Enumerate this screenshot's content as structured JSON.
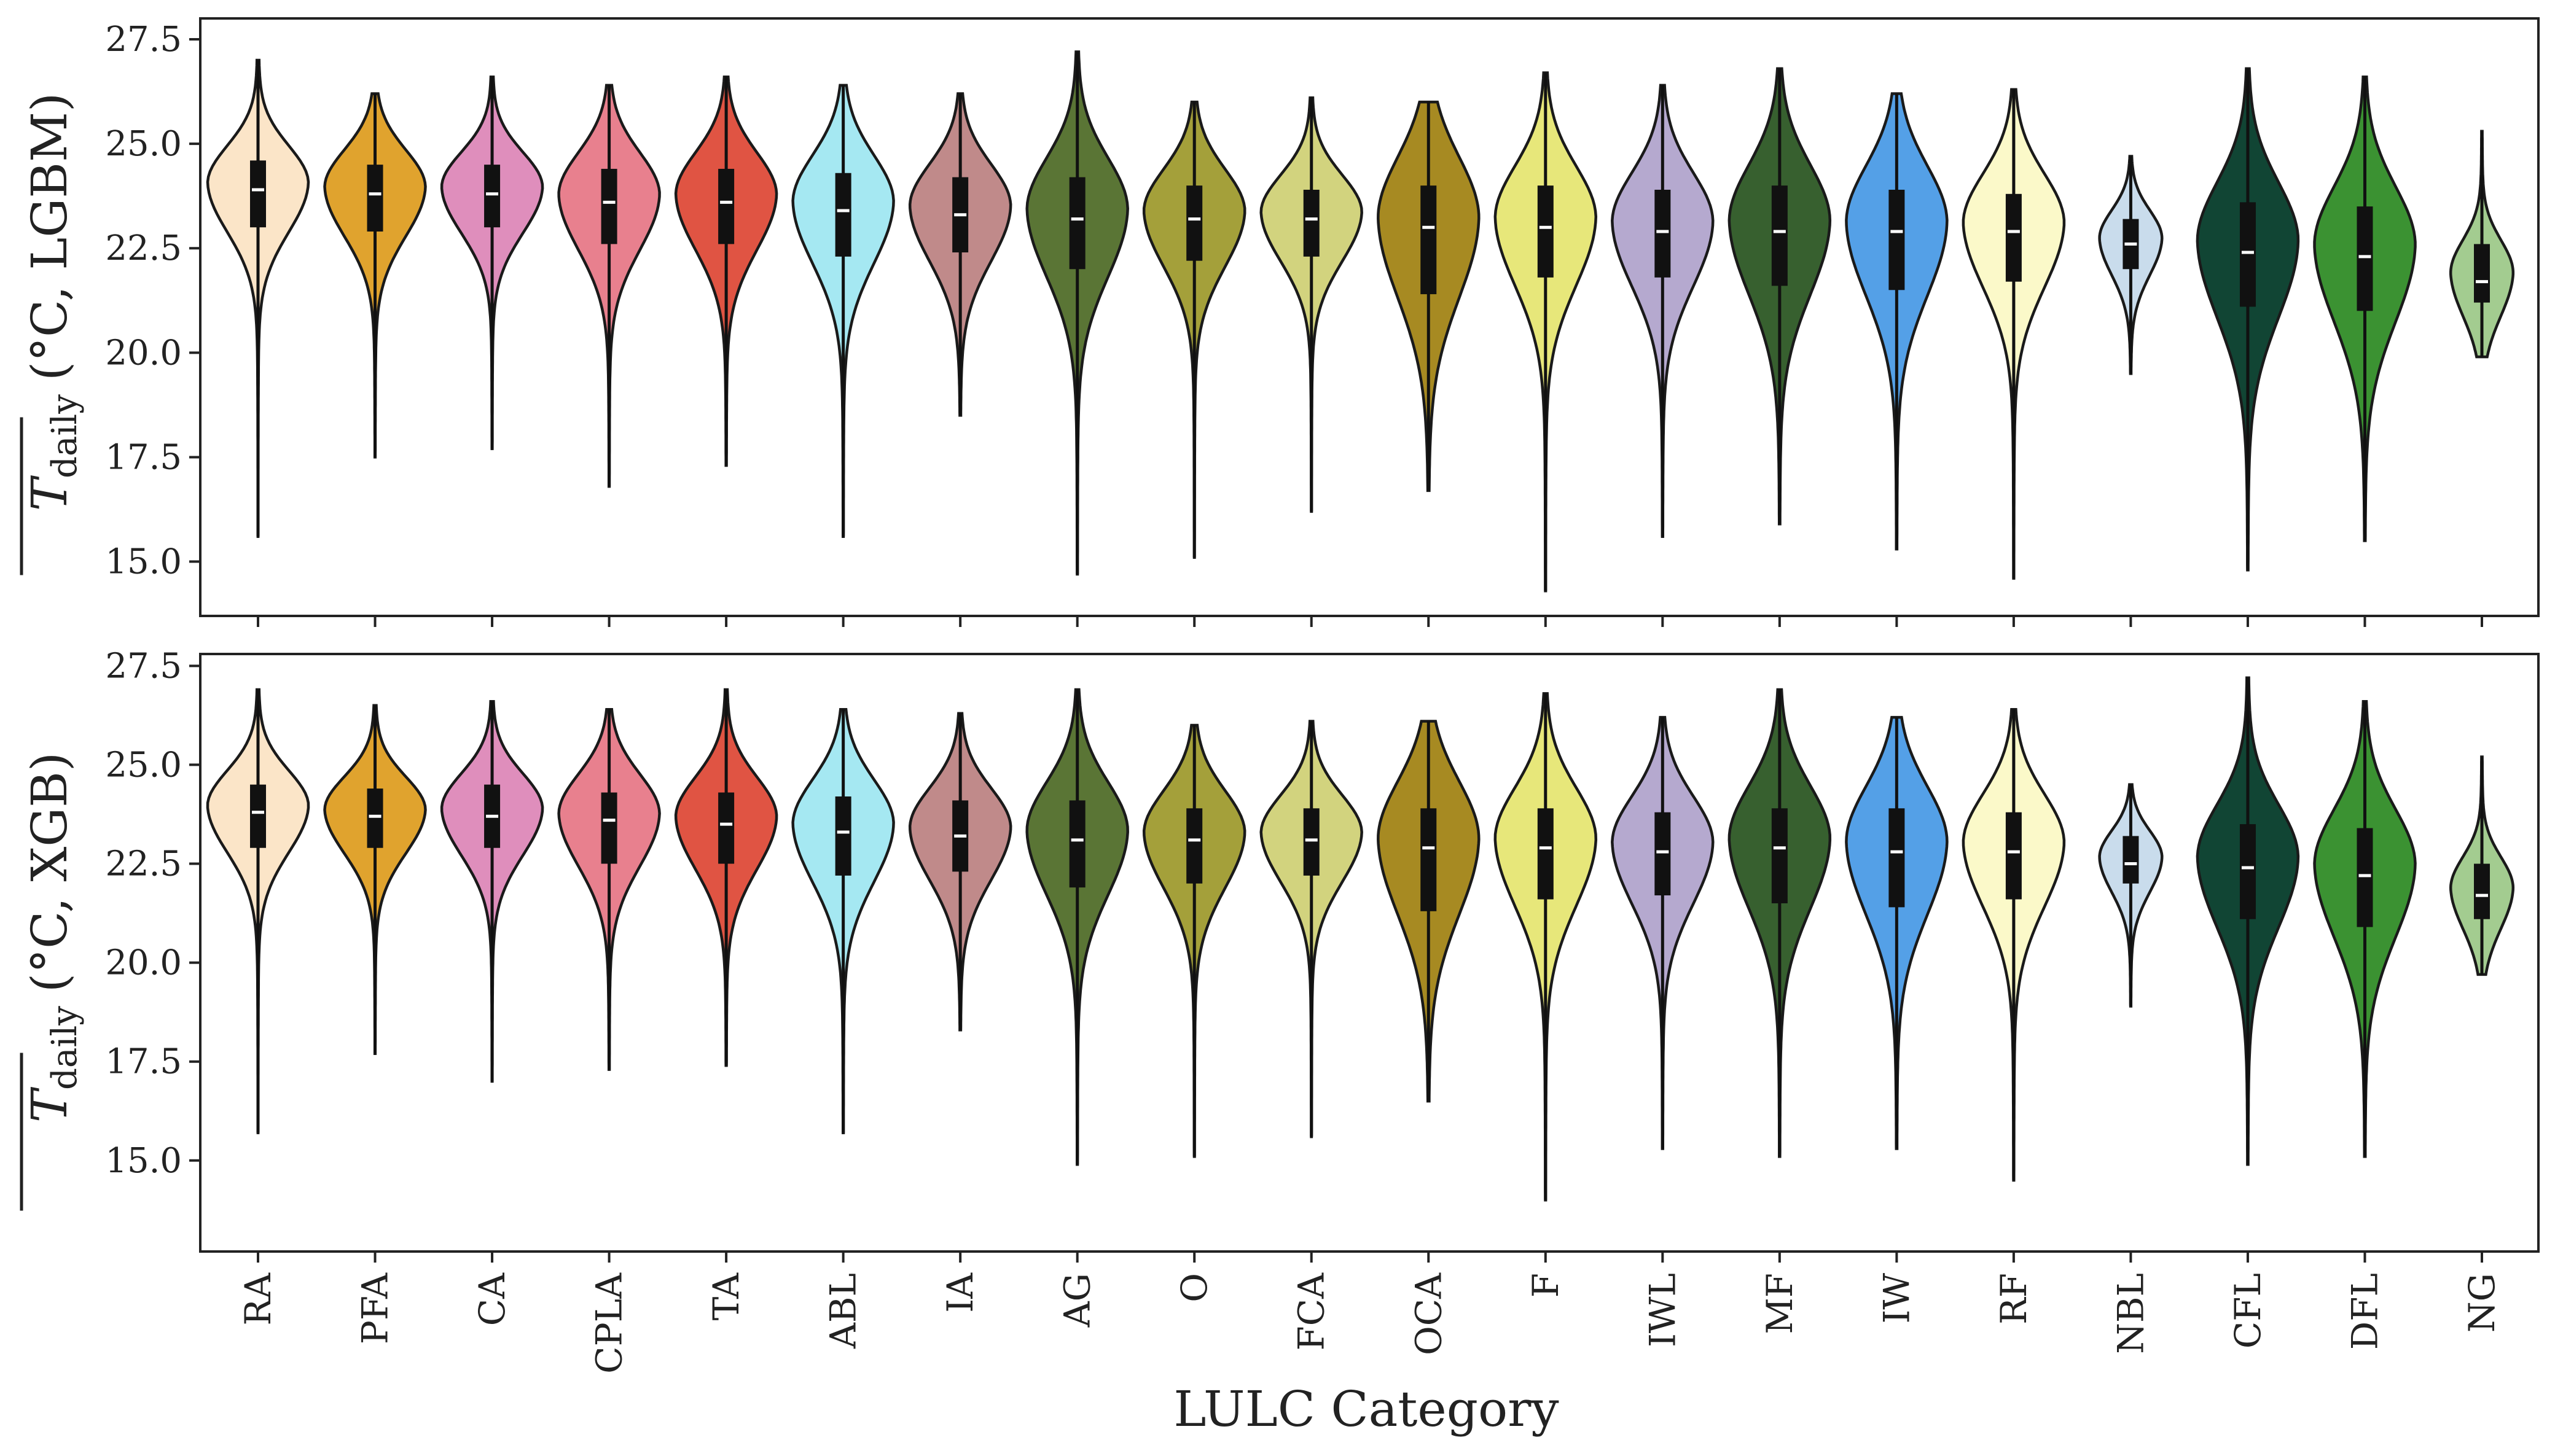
{
  "chart_data": [
    {
      "type": "violin",
      "ylabel_symbol": "T",
      "ylabel_subscript": "daily",
      "ylabel_units": "(°C, LGBM)",
      "ylim": [
        13.7,
        28.0
      ],
      "yticks": [
        15.0,
        17.5,
        20.0,
        22.5,
        25.0,
        27.5
      ],
      "ytick_labels": [
        "15.0",
        "17.5",
        "20.0",
        "22.5",
        "25.0",
        "27.5"
      ],
      "grid": false,
      "categories": [
        "RA",
        "PFA",
        "CA",
        "CPLA",
        "TA",
        "ABL",
        "IA",
        "AG",
        "O",
        "FCA",
        "OCA",
        "F",
        "IWL",
        "MF",
        "IW",
        "RF",
        "NBL",
        "CFL",
        "DFL",
        "NG"
      ],
      "series": [
        {
          "category": "RA",
          "min": 15.6,
          "q1": 23.0,
          "median": 23.9,
          "q3": 24.6,
          "max": 27.0
        },
        {
          "category": "PFA",
          "min": 17.5,
          "q1": 22.9,
          "median": 23.8,
          "q3": 24.5,
          "max": 26.2
        },
        {
          "category": "CA",
          "min": 17.7,
          "q1": 23.0,
          "median": 23.8,
          "q3": 24.5,
          "max": 26.6
        },
        {
          "category": "CPLA",
          "min": 16.8,
          "q1": 22.6,
          "median": 23.6,
          "q3": 24.4,
          "max": 26.4
        },
        {
          "category": "TA",
          "min": 17.3,
          "q1": 22.6,
          "median": 23.6,
          "q3": 24.4,
          "max": 26.6
        },
        {
          "category": "ABL",
          "min": 15.6,
          "q1": 22.3,
          "median": 23.4,
          "q3": 24.3,
          "max": 26.4
        },
        {
          "category": "IA",
          "min": 18.5,
          "q1": 22.4,
          "median": 23.3,
          "q3": 24.2,
          "max": 26.2
        },
        {
          "category": "AG",
          "min": 14.7,
          "q1": 22.0,
          "median": 23.2,
          "q3": 24.2,
          "max": 27.2
        },
        {
          "category": "O",
          "min": 15.1,
          "q1": 22.2,
          "median": 23.2,
          "q3": 24.0,
          "max": 26.0
        },
        {
          "category": "FCA",
          "min": 16.2,
          "q1": 22.3,
          "median": 23.2,
          "q3": 23.9,
          "max": 26.1
        },
        {
          "category": "OCA",
          "min": 16.7,
          "q1": 21.4,
          "median": 23.0,
          "q3": 24.0,
          "max": 26.0
        },
        {
          "category": "F",
          "min": 14.3,
          "q1": 21.8,
          "median": 23.0,
          "q3": 24.0,
          "max": 26.7
        },
        {
          "category": "IWL",
          "min": 15.6,
          "q1": 21.8,
          "median": 22.9,
          "q3": 23.9,
          "max": 26.4
        },
        {
          "category": "MF",
          "min": 15.9,
          "q1": 21.6,
          "median": 22.9,
          "q3": 24.0,
          "max": 26.8
        },
        {
          "category": "IW",
          "min": 15.3,
          "q1": 21.5,
          "median": 22.9,
          "q3": 23.9,
          "max": 26.2
        },
        {
          "category": "RF",
          "min": 14.6,
          "q1": 21.7,
          "median": 22.9,
          "q3": 23.8,
          "max": 26.3
        },
        {
          "category": "NBL",
          "min": 19.5,
          "q1": 22.0,
          "median": 22.6,
          "q3": 23.2,
          "max": 24.7
        },
        {
          "category": "CFL",
          "min": 14.8,
          "q1": 21.1,
          "median": 22.4,
          "q3": 23.6,
          "max": 26.8
        },
        {
          "category": "DFL",
          "min": 15.5,
          "q1": 21.0,
          "median": 22.3,
          "q3": 23.5,
          "max": 26.6
        },
        {
          "category": "NG",
          "min": 19.9,
          "q1": 21.2,
          "median": 21.7,
          "q3": 22.6,
          "max": 25.3
        }
      ]
    },
    {
      "type": "violin",
      "ylabel_symbol": "T",
      "ylabel_subscript": "daily",
      "ylabel_units": "(°C, XGB)",
      "xlabel": "LULC Category",
      "ylim": [
        12.7,
        27.8
      ],
      "yticks": [
        15.0,
        17.5,
        20.0,
        22.5,
        25.0,
        27.5
      ],
      "ytick_labels": [
        "15.0",
        "17.5",
        "20.0",
        "22.5",
        "25.0",
        "27.5"
      ],
      "grid": false,
      "categories": [
        "RA",
        "PFA",
        "CA",
        "CPLA",
        "TA",
        "ABL",
        "IA",
        "AG",
        "O",
        "FCA",
        "OCA",
        "F",
        "IWL",
        "MF",
        "IW",
        "RF",
        "NBL",
        "CFL",
        "DFL",
        "NG"
      ],
      "series": [
        {
          "category": "RA",
          "min": 15.7,
          "q1": 22.9,
          "median": 23.8,
          "q3": 24.5,
          "max": 26.9
        },
        {
          "category": "PFA",
          "min": 17.7,
          "q1": 22.9,
          "median": 23.7,
          "q3": 24.4,
          "max": 26.5
        },
        {
          "category": "CA",
          "min": 17.0,
          "q1": 22.9,
          "median": 23.7,
          "q3": 24.5,
          "max": 26.6
        },
        {
          "category": "CPLA",
          "min": 17.3,
          "q1": 22.5,
          "median": 23.6,
          "q3": 24.3,
          "max": 26.4
        },
        {
          "category": "TA",
          "min": 17.4,
          "q1": 22.5,
          "median": 23.5,
          "q3": 24.3,
          "max": 26.9
        },
        {
          "category": "ABL",
          "min": 15.7,
          "q1": 22.2,
          "median": 23.3,
          "q3": 24.2,
          "max": 26.4
        },
        {
          "category": "IA",
          "min": 18.3,
          "q1": 22.3,
          "median": 23.2,
          "q3": 24.1,
          "max": 26.3
        },
        {
          "category": "AG",
          "min": 14.9,
          "q1": 21.9,
          "median": 23.1,
          "q3": 24.1,
          "max": 26.9
        },
        {
          "category": "O",
          "min": 15.1,
          "q1": 22.0,
          "median": 23.1,
          "q3": 23.9,
          "max": 26.0
        },
        {
          "category": "FCA",
          "min": 15.6,
          "q1": 22.2,
          "median": 23.1,
          "q3": 23.9,
          "max": 26.1
        },
        {
          "category": "OCA",
          "min": 16.5,
          "q1": 21.3,
          "median": 22.9,
          "q3": 23.9,
          "max": 26.1
        },
        {
          "category": "F",
          "min": 14.0,
          "q1": 21.6,
          "median": 22.9,
          "q3": 23.9,
          "max": 26.8
        },
        {
          "category": "IWL",
          "min": 15.3,
          "q1": 21.7,
          "median": 22.8,
          "q3": 23.8,
          "max": 26.2
        },
        {
          "category": "MF",
          "min": 15.1,
          "q1": 21.5,
          "median": 22.9,
          "q3": 23.9,
          "max": 26.9
        },
        {
          "category": "IW",
          "min": 15.3,
          "q1": 21.4,
          "median": 22.8,
          "q3": 23.9,
          "max": 26.2
        },
        {
          "category": "RF",
          "min": 14.5,
          "q1": 21.6,
          "median": 22.8,
          "q3": 23.8,
          "max": 26.4
        },
        {
          "category": "NBL",
          "min": 18.9,
          "q1": 22.0,
          "median": 22.5,
          "q3": 23.2,
          "max": 24.5
        },
        {
          "category": "CFL",
          "min": 14.9,
          "q1": 21.1,
          "median": 22.4,
          "q3": 23.5,
          "max": 27.2
        },
        {
          "category": "DFL",
          "min": 15.1,
          "q1": 20.9,
          "median": 22.2,
          "q3": 23.4,
          "max": 26.6
        },
        {
          "category": "NG",
          "min": 19.7,
          "q1": 21.1,
          "median": 21.7,
          "q3": 22.5,
          "max": 25.2
        }
      ]
    }
  ],
  "colors": {
    "RA": "#fbe5c8",
    "PFA": "#e0a32e",
    "CA": "#df8ebc",
    "CPLA": "#e8808e",
    "TA": "#e05443",
    "ABL": "#a5e8f2",
    "IA": "#c08a8a",
    "AG": "#5a7535",
    "O": "#a4a03a",
    "FCA": "#d2d37e",
    "OCA": "#a78a22",
    "F": "#e7e77a",
    "IWL": "#b5a9cf",
    "MF": "#37602f",
    "IW": "#54a0e7",
    "RF": "#fbf9c9",
    "NBL": "#c9dcec",
    "CFL": "#114534",
    "DFL": "#3b9232",
    "NG": "#a3cc90"
  }
}
